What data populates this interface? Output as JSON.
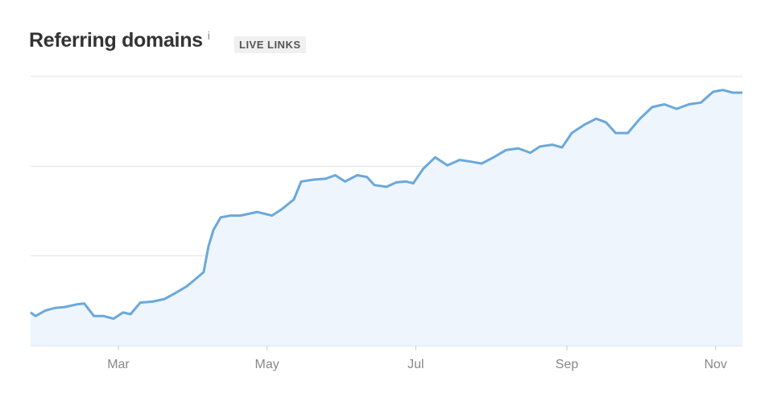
{
  "header": {
    "title": "Referring domains",
    "info": "i",
    "badge": "LIVE LINKS"
  },
  "chart_data": {
    "type": "area",
    "x": [
      0,
      2,
      6,
      10,
      14,
      19,
      22,
      26,
      30,
      34,
      38,
      41,
      45,
      50,
      55,
      59,
      64,
      68,
      71,
      73,
      75,
      78,
      82,
      86,
      93,
      99,
      103,
      108,
      111,
      116,
      121,
      125,
      129,
      134,
      138,
      141,
      146,
      150,
      154,
      157,
      161,
      166,
      171,
      176,
      181,
      185,
      190,
      195,
      200,
      205,
      209,
      214,
      218,
      222,
      227,
      232,
      236,
      240,
      245,
      250,
      255,
      260,
      265,
      270,
      275,
      280,
      284,
      288,
      292
    ],
    "values": [
      0.37,
      0.33,
      0.39,
      0.42,
      0.43,
      0.46,
      0.47,
      0.33,
      0.33,
      0.3,
      0.37,
      0.35,
      0.48,
      0.49,
      0.52,
      0.58,
      0.66,
      0.75,
      0.82,
      1.11,
      1.29,
      1.43,
      1.45,
      1.45,
      1.49,
      1.45,
      1.52,
      1.63,
      1.83,
      1.85,
      1.86,
      1.9,
      1.83,
      1.9,
      1.88,
      1.79,
      1.77,
      1.82,
      1.83,
      1.81,
      1.97,
      2.1,
      2.01,
      2.07,
      2.05,
      2.03,
      2.1,
      2.18,
      2.2,
      2.15,
      2.22,
      2.24,
      2.21,
      2.37,
      2.46,
      2.53,
      2.49,
      2.37,
      2.37,
      2.53,
      2.66,
      2.69,
      2.64,
      2.69,
      2.71,
      2.83,
      2.85,
      2.82,
      2.82
    ],
    "xlim": [
      0,
      292
    ],
    "xticks": [
      {
        "value": 36,
        "label": "Mar"
      },
      {
        "value": 97,
        "label": "May"
      },
      {
        "value": 158,
        "label": "Jul"
      },
      {
        "value": 220,
        "label": "Sep"
      },
      {
        "value": 281,
        "label": "Nov"
      }
    ],
    "ylim": [
      0,
      3
    ],
    "yticks": [
      0,
      1,
      2,
      3
    ],
    "grid": true,
    "color": "#6aa8db",
    "fill": "#eef5fc"
  }
}
